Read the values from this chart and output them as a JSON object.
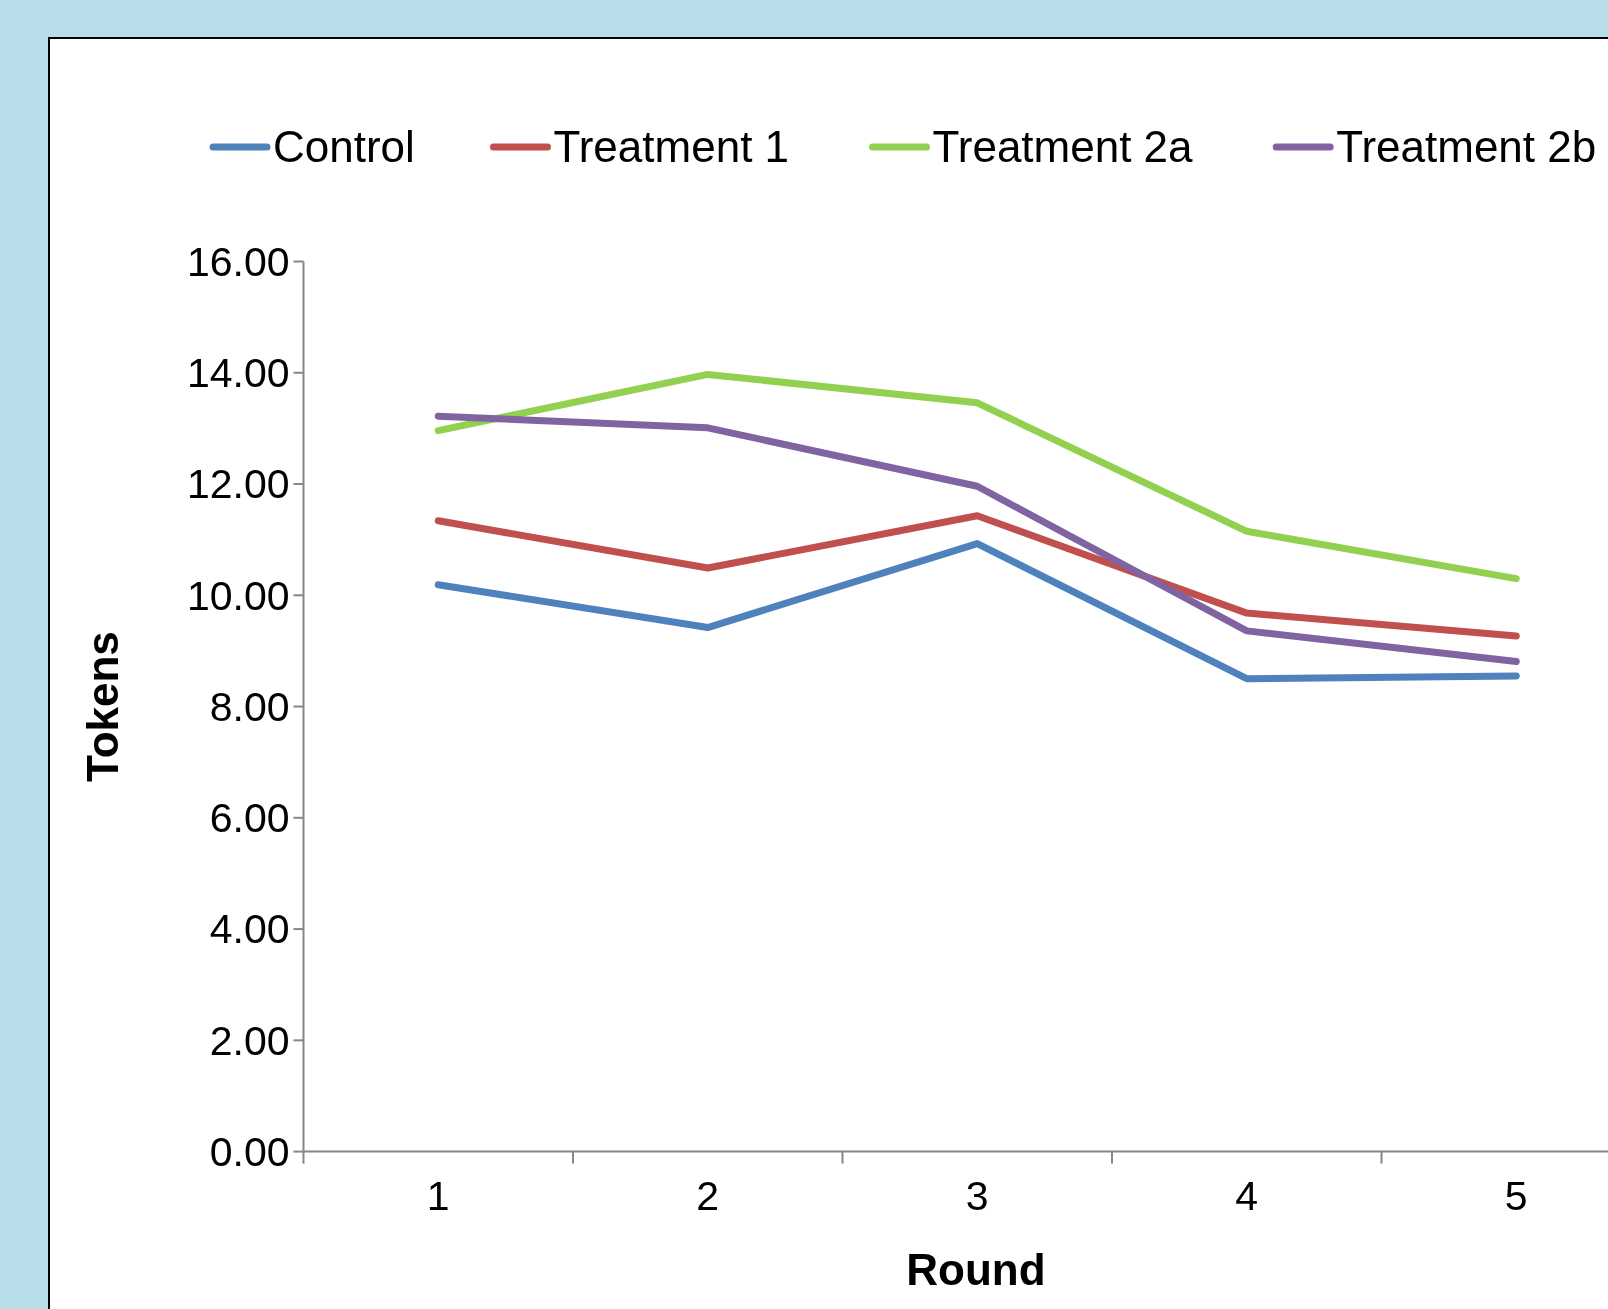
{
  "chart_data": {
    "type": "line",
    "xlabel": "Round",
    "ylabel": "Tokens",
    "categories": [
      "1",
      "2",
      "3",
      "4",
      "5"
    ],
    "series": [
      {
        "name": "Control",
        "color": "#4f81bd",
        "values": [
          10.19,
          9.42,
          10.93,
          8.5,
          8.55
        ]
      },
      {
        "name": "Treatment 1",
        "color": "#c0504d",
        "values": [
          11.34,
          10.49,
          11.43,
          9.68,
          9.27
        ]
      },
      {
        "name": "Treatment 2a",
        "color": "#92d050",
        "values": [
          12.96,
          13.97,
          13.46,
          11.15,
          10.3
        ]
      },
      {
        "name": "Treatment 2b",
        "color": "#8064a2",
        "values": [
          13.22,
          13.01,
          11.96,
          9.36,
          8.81
        ]
      }
    ],
    "ylim": [
      0,
      16
    ],
    "yticks": [
      {
        "value": 0,
        "label": "0.00"
      },
      {
        "value": 2,
        "label": "2.00"
      },
      {
        "value": 4,
        "label": "4.00"
      },
      {
        "value": 6,
        "label": "6.00"
      },
      {
        "value": 8,
        "label": "8.00"
      },
      {
        "value": 10,
        "label": "10.00"
      },
      {
        "value": 12,
        "label": "12.00"
      },
      {
        "value": 14,
        "label": "14.00"
      },
      {
        "value": 16,
        "label": "16.00"
      }
    ],
    "grid": false,
    "legend": "top",
    "marker": "none",
    "line_style": "solid"
  }
}
